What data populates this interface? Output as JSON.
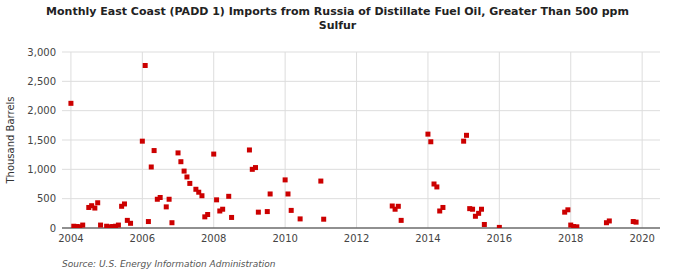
{
  "chart_data": {
    "type": "scatter",
    "title": "Monthly East Coast (PADD 1) Imports from Russia of Distillate Fuel Oil, Greater Than 500 ppm\nSulfur",
    "ylabel": "Thousand Barrels",
    "source": "Source: U.S. Energy Information Administration",
    "color": "#cc0000",
    "marker": "square",
    "grid": true,
    "xlim": [
      2003.75,
      2020.5
    ],
    "xticks": [
      2004,
      2006,
      2008,
      2010,
      2012,
      2014,
      2016,
      2018,
      2020
    ],
    "ylim": [
      0,
      3000
    ],
    "yticks": [
      0,
      500,
      {
        "value": 1000,
        "label": "1,000"
      },
      {
        "value": 1500,
        "label": "1,500"
      },
      {
        "value": 2000,
        "label": "2,000"
      },
      {
        "value": 2500,
        "label": "2,500"
      },
      {
        "value": 3000,
        "label": "3,000"
      }
    ],
    "x": [
      2004.0,
      2004.08,
      2004.17,
      2004.25,
      2004.33,
      2004.5,
      2004.58,
      2004.67,
      2004.75,
      2004.83,
      2005.0,
      2005.08,
      2005.17,
      2005.25,
      2005.33,
      2005.42,
      2005.5,
      2005.58,
      2005.67,
      2006.0,
      2006.08,
      2006.17,
      2006.25,
      2006.33,
      2006.42,
      2006.5,
      2006.67,
      2006.75,
      2006.83,
      2007.0,
      2007.08,
      2007.17,
      2007.25,
      2007.33,
      2007.5,
      2007.58,
      2007.67,
      2007.75,
      2007.83,
      2008.0,
      2008.08,
      2008.17,
      2008.25,
      2008.42,
      2008.5,
      2009.0,
      2009.08,
      2009.17,
      2009.25,
      2009.5,
      2009.58,
      2010.0,
      2010.08,
      2010.17,
      2010.42,
      2011.0,
      2011.08,
      2013.0,
      2013.08,
      2013.17,
      2013.25,
      2014.0,
      2014.08,
      2014.17,
      2014.25,
      2014.33,
      2014.42,
      2015.0,
      2015.08,
      2015.17,
      2015.25,
      2015.33,
      2015.42,
      2015.5,
      2015.58,
      2016.0,
      2017.83,
      2017.92,
      2018.0,
      2018.08,
      2018.17,
      2019.0,
      2019.08,
      2019.75,
      2019.83
    ],
    "values": [
      2125,
      30,
      25,
      20,
      50,
      350,
      380,
      340,
      430,
      50,
      30,
      20,
      25,
      30,
      50,
      370,
      410,
      130,
      80,
      1480,
      2770,
      110,
      1040,
      1320,
      490,
      520,
      360,
      490,
      90,
      1280,
      1130,
      970,
      870,
      760,
      660,
      610,
      550,
      190,
      230,
      1260,
      480,
      290,
      320,
      540,
      180,
      1330,
      1000,
      1030,
      270,
      280,
      580,
      820,
      580,
      300,
      155,
      800,
      150,
      375,
      320,
      370,
      130,
      1600,
      1470,
      750,
      700,
      290,
      350,
      1480,
      1580,
      330,
      320,
      200,
      250,
      320,
      60,
      10,
      270,
      310,
      50,
      25,
      20,
      90,
      120,
      110,
      100
    ]
  }
}
